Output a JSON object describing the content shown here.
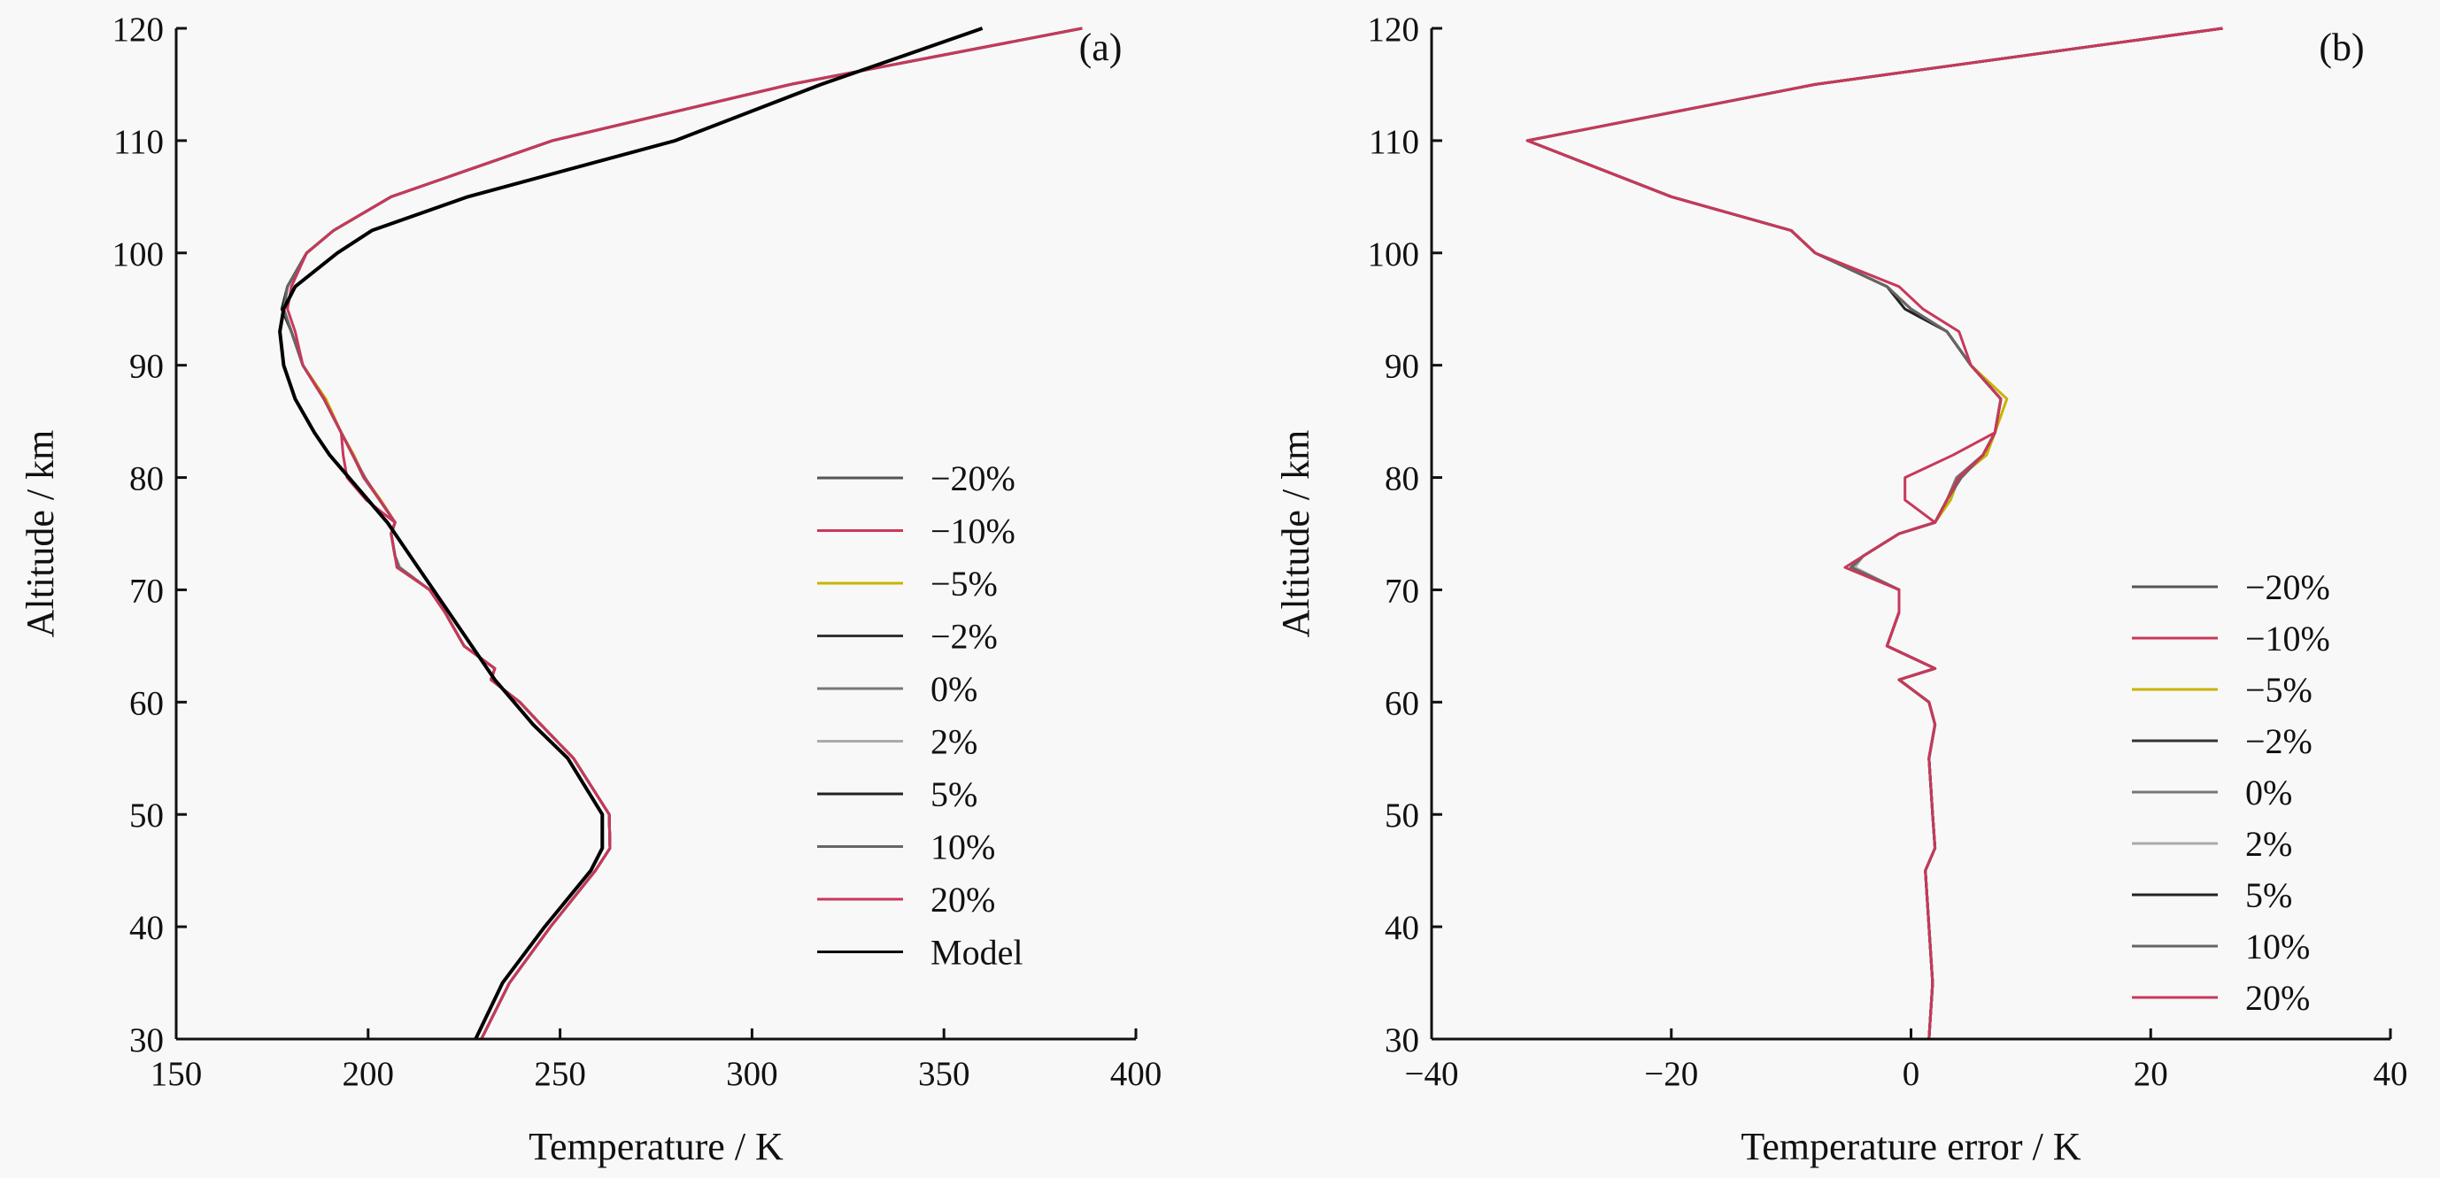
{
  "chart_data": [
    {
      "type": "line",
      "panel_label": "(a)",
      "xlabel": "Temperature / K",
      "ylabel": "Altitude / km",
      "xlim": [
        150,
        400
      ],
      "ylim": [
        30,
        120
      ],
      "xticks": [
        150,
        200,
        250,
        300,
        350,
        400
      ],
      "yticks": [
        30,
        40,
        50,
        60,
        70,
        80,
        90,
        100,
        110,
        120
      ],
      "grid": false,
      "legend_placement": "center-right",
      "altitude": [
        30,
        35,
        40,
        45,
        47,
        50,
        55,
        58,
        60,
        62,
        63,
        65,
        68,
        70,
        72,
        73,
        75,
        76,
        78,
        80,
        82,
        84,
        87,
        90,
        93,
        95,
        97,
        100,
        102,
        105,
        110,
        115,
        120
      ],
      "series": [
        {
          "name": "−20%",
          "color": "#555555",
          "values": [
            229.5,
            236.8,
            247.5,
            259.2,
            263,
            262.8,
            253.5,
            245,
            239.5,
            232,
            233,
            225,
            220,
            216,
            208,
            207,
            206,
            207,
            203,
            199,
            196,
            193,
            188.5,
            183,
            180,
            178,
            179,
            184,
            191,
            206,
            248,
            310,
            386
          ]
        },
        {
          "name": "−10%",
          "color": "#c8385a",
          "values": [
            229.5,
            236.8,
            247.5,
            259.2,
            263,
            262.8,
            253.5,
            245,
            239.5,
            232,
            233,
            225,
            220,
            216,
            208,
            207,
            206,
            207,
            199.5,
            194.5,
            193.5,
            193,
            188.5,
            183,
            180,
            178,
            179,
            184,
            191,
            206,
            248,
            310,
            386
          ]
        },
        {
          "name": "−5%",
          "color": "#c8b400",
          "values": [
            229.5,
            236.8,
            247.5,
            259.2,
            263,
            262.8,
            253.5,
            245,
            239.5,
            232,
            233,
            225,
            220,
            216,
            208,
            207,
            206,
            207,
            203.3,
            199,
            196.3,
            193,
            189,
            183,
            180,
            178,
            179,
            184,
            191,
            206,
            248,
            310,
            386
          ]
        },
        {
          "name": "−2%",
          "color": "#333333",
          "values": [
            229.5,
            236.8,
            247.5,
            259.2,
            263,
            262.8,
            253.5,
            245,
            239.5,
            232,
            233,
            225,
            220,
            216,
            208,
            207,
            206,
            207,
            203,
            199,
            196,
            193,
            188.5,
            183,
            180,
            178,
            179,
            184,
            191,
            206,
            248,
            310,
            386
          ]
        },
        {
          "name": "0%",
          "color": "#777777",
          "values": [
            229.5,
            236.8,
            247.5,
            259.2,
            263,
            262.8,
            253.5,
            245,
            239.5,
            232,
            233,
            225,
            220,
            216,
            208.2,
            207,
            206,
            207,
            203,
            198.8,
            196,
            193,
            188.5,
            183,
            180,
            178,
            179,
            184,
            191,
            206,
            248,
            310,
            386
          ]
        },
        {
          "name": "2%",
          "color": "#aaaaaa",
          "values": [
            229.5,
            236.8,
            247.5,
            259.2,
            263,
            262.8,
            253.5,
            245,
            239.5,
            232,
            233,
            225,
            220,
            216,
            208.3,
            207,
            206,
            207,
            203,
            199,
            196,
            193,
            188.5,
            183,
            180,
            178,
            179,
            184,
            191,
            206,
            248,
            310,
            386
          ]
        },
        {
          "name": "5%",
          "color": "#222222",
          "values": [
            229.5,
            236.8,
            247.5,
            259.2,
            263,
            262.8,
            253.5,
            245,
            239.5,
            232,
            233,
            225,
            220,
            216,
            208,
            207,
            206,
            207,
            203,
            199,
            196,
            193,
            188.5,
            183,
            180,
            177.5,
            179,
            184,
            191,
            206,
            248,
            310,
            386
          ]
        },
        {
          "name": "10%",
          "color": "#666666",
          "values": [
            229.5,
            236.8,
            247.5,
            259.2,
            263,
            262.8,
            253.5,
            245,
            239.5,
            232,
            233,
            225,
            220,
            216,
            208,
            207,
            206,
            207,
            203,
            199.2,
            196,
            193,
            188.5,
            183,
            180,
            178,
            179,
            184,
            191,
            206,
            248,
            310,
            386
          ]
        },
        {
          "name": "20%",
          "color": "#c8385a",
          "values": [
            229.5,
            236.8,
            247.5,
            259.2,
            263,
            262.8,
            253.5,
            245,
            239.5,
            232,
            233,
            225,
            220,
            216,
            207.5,
            207,
            206,
            207,
            203,
            199,
            196,
            193,
            188.5,
            183,
            181,
            179,
            180,
            184,
            191,
            206,
            248,
            310,
            386
          ]
        },
        {
          "name": "Model",
          "color": "#000000",
          "values": [
            228,
            235,
            246,
            258,
            261,
            261,
            252,
            243,
            238,
            233,
            231,
            227,
            221,
            217,
            213,
            211,
            207,
            205,
            200,
            195,
            190,
            186,
            181,
            178,
            177,
            178,
            181,
            192,
            201,
            226,
            280,
            318,
            360
          ]
        }
      ]
    },
    {
      "type": "line",
      "panel_label": "(b)",
      "xlabel": "Temperature error / K",
      "ylabel": "Altitude / km",
      "xlim": [
        -40,
        40
      ],
      "ylim": [
        30,
        120
      ],
      "xticks": [
        -40,
        -20,
        0,
        20,
        40
      ],
      "xtick_labels": [
        "−40",
        "−20",
        "0",
        "20",
        "40"
      ],
      "yticks": [
        30,
        40,
        50,
        60,
        70,
        80,
        90,
        100,
        110,
        120
      ],
      "grid": false,
      "legend_placement": "lower-right",
      "altitude": [
        30,
        35,
        40,
        45,
        47,
        50,
        55,
        58,
        60,
        62,
        63,
        65,
        68,
        70,
        72,
        73,
        75,
        76,
        78,
        80,
        82,
        84,
        87,
        90,
        93,
        95,
        97,
        100,
        102,
        105,
        110,
        115,
        120
      ],
      "series": [
        {
          "name": "−20%",
          "color": "#555555",
          "values": [
            1.5,
            1.8,
            1.5,
            1.2,
            2,
            1.8,
            1.5,
            2,
            1.5,
            -1,
            2,
            -2,
            -1,
            -1,
            -5,
            -4,
            -1,
            2,
            3,
            4,
            6,
            7,
            7.5,
            5,
            3,
            0,
            -2,
            -8,
            -10,
            -20,
            -32,
            -8,
            26
          ]
        },
        {
          "name": "−10%",
          "color": "#c8385a",
          "values": [
            1.5,
            1.8,
            1.5,
            1.2,
            2,
            1.8,
            1.5,
            2,
            1.5,
            -1,
            2,
            -2,
            -1,
            -1,
            -5,
            -4,
            -1,
            2,
            -0.5,
            -0.5,
            3.5,
            7,
            7.5,
            5,
            3,
            0,
            -2,
            -8,
            -10,
            -20,
            -32,
            -8,
            26
          ]
        },
        {
          "name": "−5%",
          "color": "#c8b400",
          "values": [
            1.5,
            1.8,
            1.5,
            1.2,
            2,
            1.8,
            1.5,
            2,
            1.5,
            -1,
            2,
            -2,
            -1,
            -1,
            -5,
            -4,
            -1,
            2,
            3.3,
            4,
            6.3,
            7,
            8,
            5,
            3,
            0,
            -2,
            -8,
            -10,
            -20,
            -32,
            -8,
            26
          ]
        },
        {
          "name": "−2%",
          "color": "#333333",
          "values": [
            1.5,
            1.8,
            1.5,
            1.2,
            2,
            1.8,
            1.5,
            2,
            1.5,
            -1,
            2,
            -2,
            -1,
            -1,
            -5,
            -4,
            -1,
            2,
            3,
            4,
            6,
            7,
            7.5,
            5,
            3,
            0,
            -2,
            -8,
            -10,
            -20,
            -32,
            -8,
            26
          ]
        },
        {
          "name": "0%",
          "color": "#777777",
          "values": [
            1.5,
            1.8,
            1.5,
            1.2,
            2,
            1.8,
            1.5,
            2,
            1.5,
            -1,
            2,
            -2,
            -1,
            -1,
            -4.8,
            -4,
            -1,
            2,
            3,
            3.8,
            6,
            7,
            7.5,
            5,
            3,
            0,
            -2,
            -8,
            -10,
            -20,
            -32,
            -8,
            26
          ]
        },
        {
          "name": "2%",
          "color": "#aaaaaa",
          "values": [
            1.5,
            1.8,
            1.5,
            1.2,
            2,
            1.8,
            1.5,
            2,
            1.5,
            -1,
            2,
            -2,
            -1,
            -1,
            -4.7,
            -4,
            -1,
            2,
            3,
            4,
            6,
            7,
            7.5,
            5,
            3,
            0,
            -2,
            -8,
            -10,
            -20,
            -32,
            -8,
            26
          ]
        },
        {
          "name": "5%",
          "color": "#222222",
          "values": [
            1.5,
            1.8,
            1.5,
            1.2,
            2,
            1.8,
            1.5,
            2,
            1.5,
            -1,
            2,
            -2,
            -1,
            -1,
            -5,
            -4,
            -1,
            2,
            3,
            4,
            6,
            7,
            7.5,
            5,
            3,
            -0.5,
            -2,
            -8,
            -10,
            -20,
            -32,
            -8,
            26
          ]
        },
        {
          "name": "10%",
          "color": "#666666",
          "values": [
            1.5,
            1.8,
            1.5,
            1.2,
            2,
            1.8,
            1.5,
            2,
            1.5,
            -1,
            2,
            -2,
            -1,
            -1,
            -5,
            -4,
            -1,
            2,
            3,
            4.2,
            6,
            7,
            7.5,
            5,
            3,
            0,
            -2,
            -8,
            -10,
            -20,
            -32,
            -8,
            26
          ]
        },
        {
          "name": "20%",
          "color": "#c8385a",
          "values": [
            1.5,
            1.8,
            1.5,
            1.2,
            2,
            1.8,
            1.5,
            2,
            1.5,
            -1,
            2,
            -2,
            -1,
            -1,
            -5.5,
            -4,
            -1,
            2,
            3,
            4,
            6,
            7,
            7.5,
            5,
            4,
            1,
            -1,
            -8,
            -10,
            -20,
            -32,
            -8,
            26
          ]
        }
      ]
    }
  ]
}
